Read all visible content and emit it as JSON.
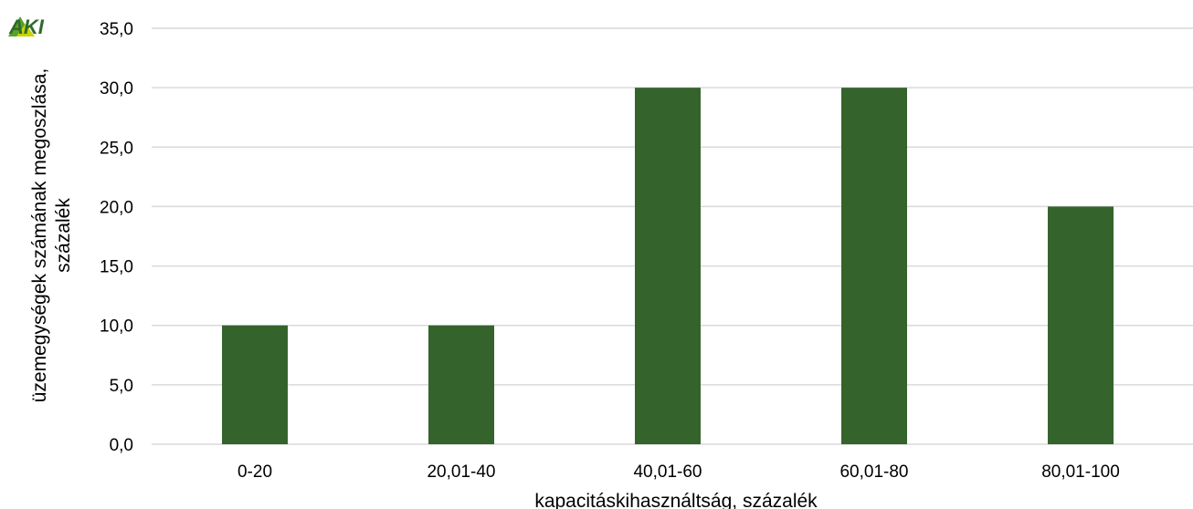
{
  "logo": {
    "text": "AKI",
    "colors": [
      "#5aa02c",
      "#c8d400",
      "#2e6b2a"
    ]
  },
  "chart_data": {
    "type": "bar",
    "categories": [
      "0-20",
      "20,01-40",
      "40,01-60",
      "60,01-80",
      "80,01-100"
    ],
    "values": [
      10,
      10,
      30,
      30,
      20
    ],
    "ylabel_lines": [
      "üzemegységek számának megoszlása,",
      "százalék"
    ],
    "xlabel": "kapacitáskihasználtság, százalék",
    "ylim": [
      0,
      35
    ],
    "yticks": [
      "0,0",
      "5,0",
      "10,0",
      "15,0",
      "20,0",
      "25,0",
      "30,0",
      "35,0"
    ],
    "grid": true,
    "bar_color": "#35632c",
    "grid_color": "#d9d9d9"
  }
}
